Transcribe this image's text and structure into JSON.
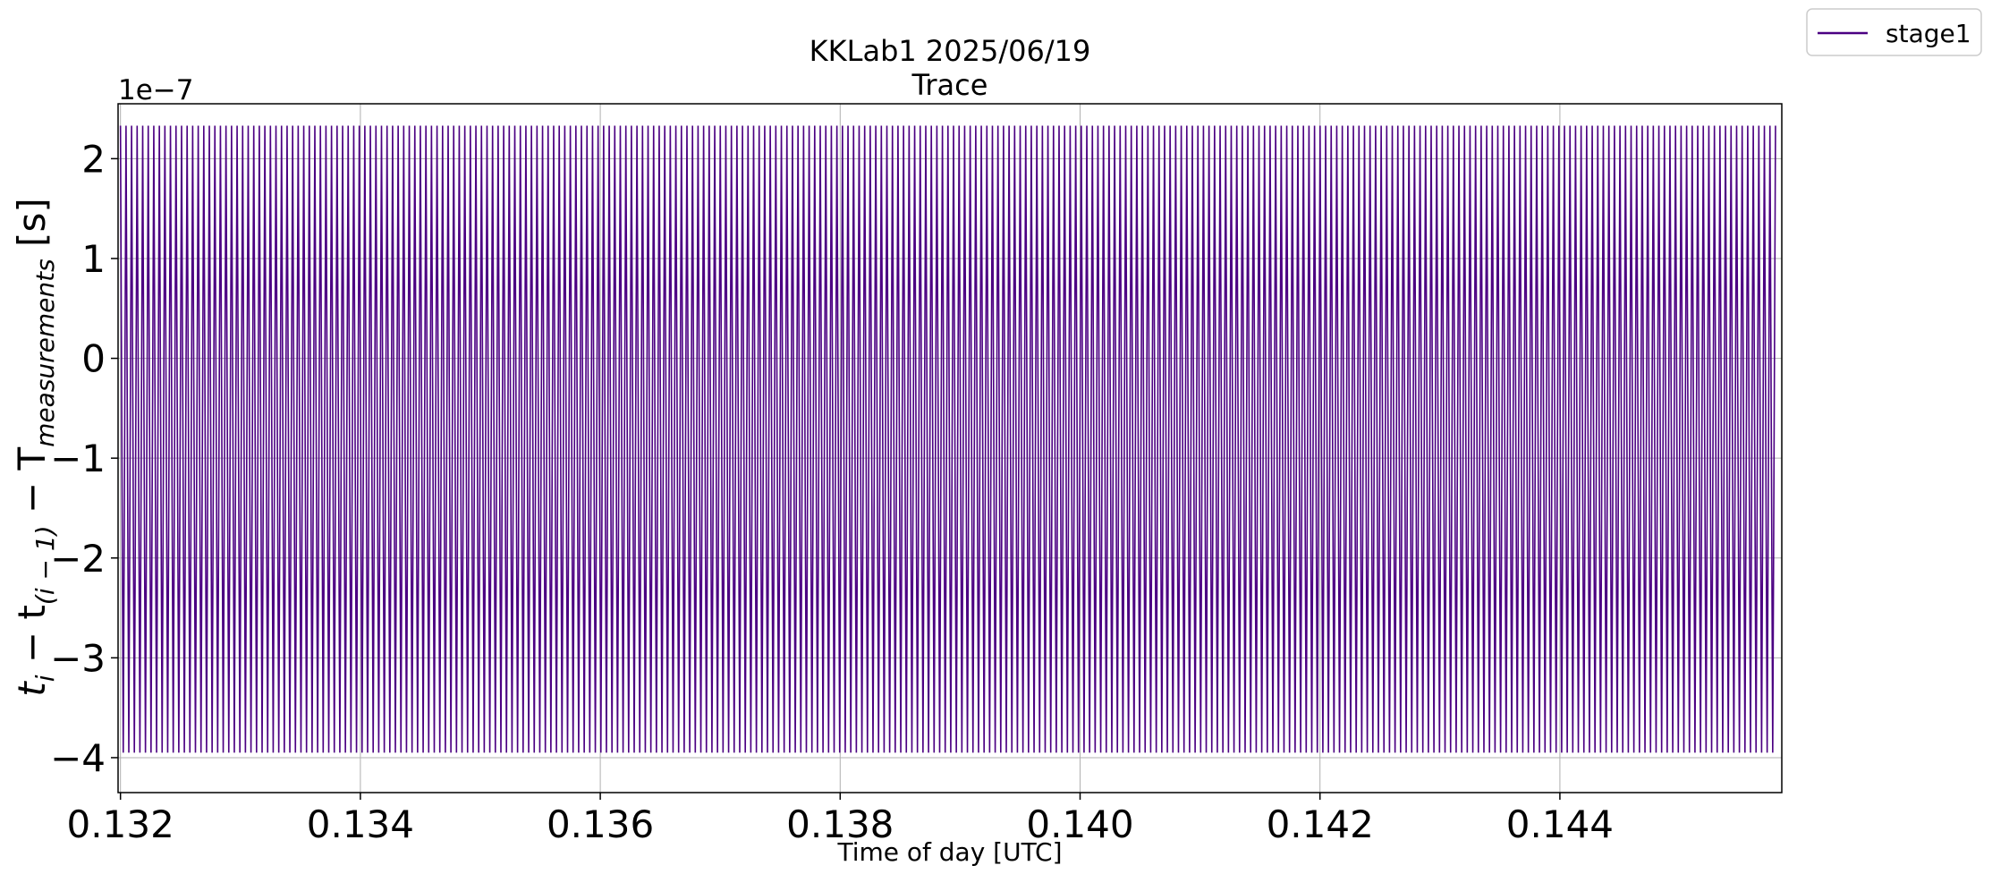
{
  "chart_data": {
    "type": "line",
    "title": "KKLab1 2025/06/19",
    "subtitle": "Trace",
    "xlabel": "Time of day [UTC]",
    "ylabel": "t_i − t_(i − 1) − T_measurements [s]",
    "y_offset_label": "1e−7",
    "x_ticks": [
      0.132,
      0.134,
      0.136,
      0.138,
      0.14,
      0.142,
      0.144
    ],
    "x_tick_labels": [
      "0.132",
      "0.134",
      "0.136",
      "0.138",
      "0.140",
      "0.142",
      "0.144"
    ],
    "y_ticks": [
      2,
      1,
      0,
      -1,
      -2,
      -3,
      -4
    ],
    "y_tick_labels": [
      "2",
      "1",
      "0",
      "−1",
      "−2",
      "−3",
      "−4"
    ],
    "xlim": [
      0.13198,
      0.14585
    ],
    "ylim": [
      -4.35,
      2.55
    ],
    "y_scale_exponent": -7,
    "grid": true,
    "legend_position": "outside top-right",
    "series": [
      {
        "name": "stage1",
        "color": "#4b0082",
        "pattern": "alternating",
        "x_start": 0.132,
        "x_end": 0.14581,
        "high": 2.33,
        "low": -3.95,
        "period": 4.63e-05
      }
    ]
  }
}
